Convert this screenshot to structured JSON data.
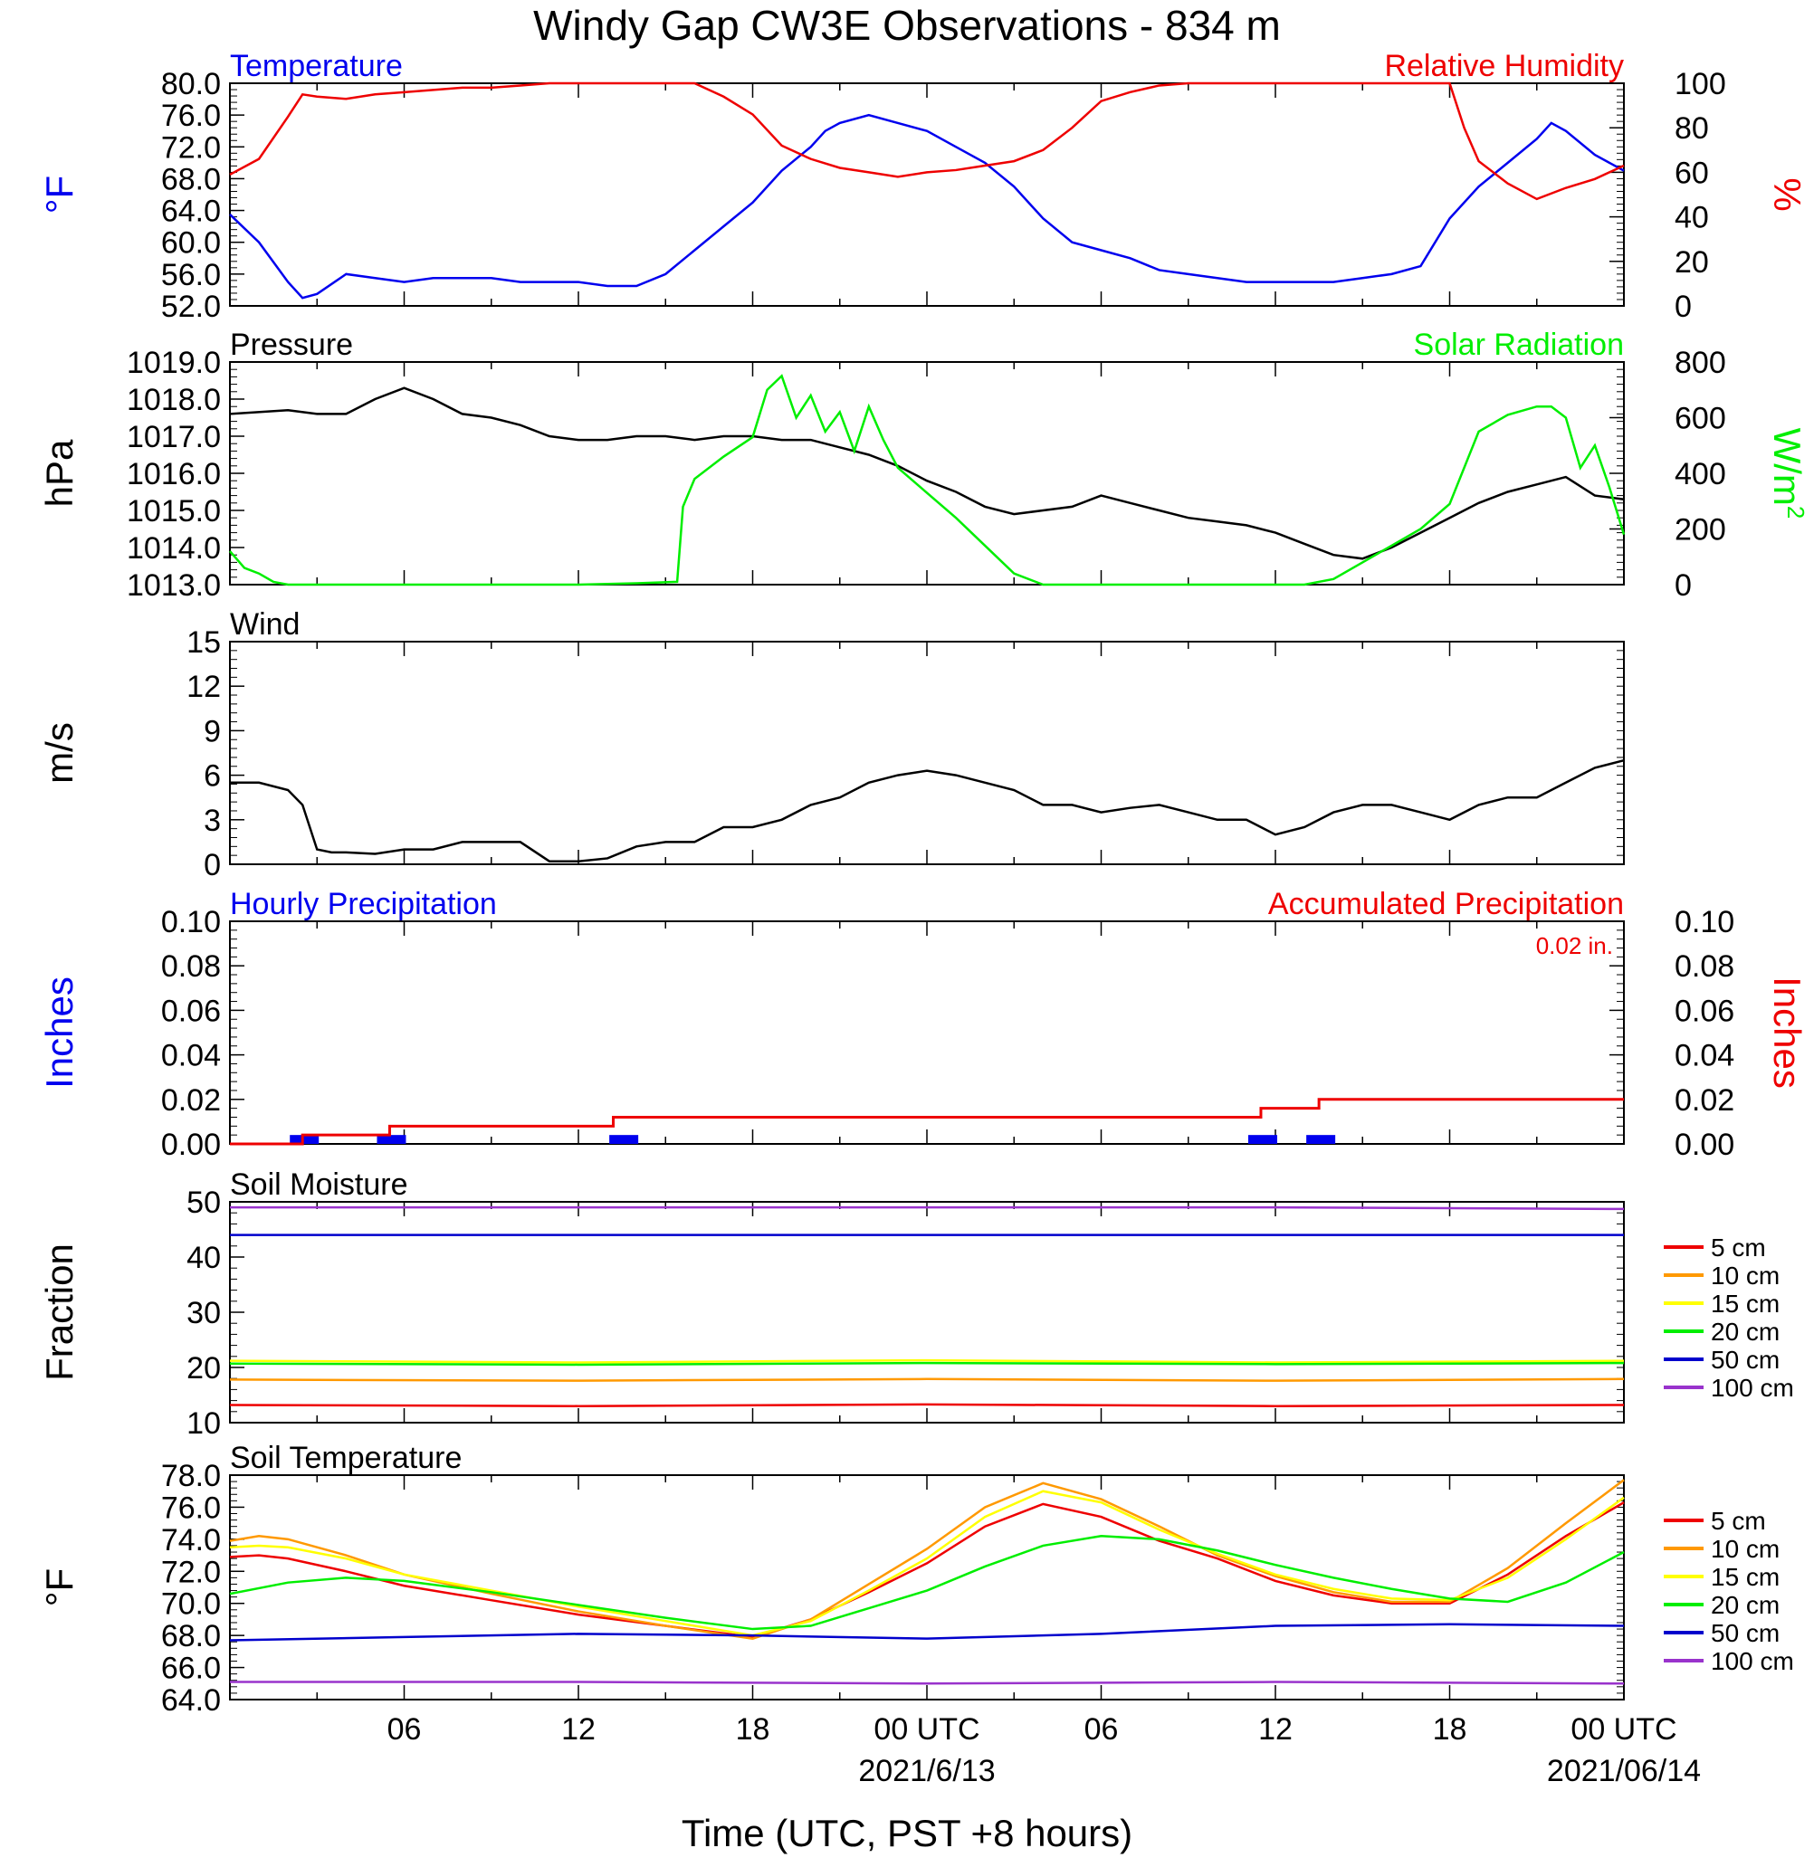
{
  "page": {
    "title": "Windy Gap CW3E Observations - 834 m"
  },
  "colors": {
    "blue": "#0000ee",
    "red": "#ee0000",
    "green": "#00ee00",
    "black": "#000000",
    "orange": "#ff9900",
    "yellow": "#ffff00",
    "navy": "#0000cc",
    "purple": "#9933cc"
  },
  "x_axis": {
    "xlabel": "Time (UTC, PST +8 hours)",
    "ticks": [
      {
        "h": 6,
        "label": "06"
      },
      {
        "h": 12,
        "label": "12"
      },
      {
        "h": 18,
        "label": "18"
      },
      {
        "h": 24,
        "label": "00 UTC",
        "sub": "2021/6/13"
      },
      {
        "h": 30,
        "label": "06"
      },
      {
        "h": 36,
        "label": "12"
      },
      {
        "h": 42,
        "label": "18"
      },
      {
        "h": 48,
        "label": "00 UTC",
        "sub": "2021/06/14"
      }
    ]
  },
  "chart_data": [
    {
      "type": "line",
      "title_left": "Temperature",
      "title_right": "Relative Humidity",
      "ylabel": "°F",
      "ylabel_right": "%",
      "ylim": [
        52,
        80
      ],
      "ylim_right": [
        0,
        100
      ],
      "yticks": [
        "52.0",
        "56.0",
        "60.0",
        "64.0",
        "68.0",
        "72.0",
        "76.0",
        "80.0"
      ],
      "yticks_right": [
        "0",
        "20",
        "40",
        "60",
        "80",
        "100"
      ],
      "x_unit": "hours since 2021/06/12 00 UTC",
      "series": [
        {
          "name": "Temperature",
          "axis": "left",
          "color": "blue",
          "x": [
            0,
            1,
            2,
            2.5,
            3,
            4,
            5,
            6,
            7,
            8,
            9,
            10,
            11,
            12,
            13,
            14,
            15,
            16,
            17,
            18,
            19,
            20,
            20.5,
            21,
            22,
            23,
            24,
            25,
            26,
            27,
            28,
            29,
            30,
            31,
            32,
            33,
            34,
            35,
            36,
            37,
            38,
            39,
            40,
            41,
            42,
            43,
            44,
            45,
            45.5,
            46,
            47,
            48
          ],
          "y": [
            63.5,
            60,
            55,
            53,
            53.5,
            56,
            55.5,
            55,
            55.5,
            55.5,
            55.5,
            55,
            55,
            55,
            54.5,
            54.5,
            56,
            59,
            62,
            65,
            69,
            72,
            74,
            75,
            76,
            75,
            74,
            72,
            70,
            67,
            63,
            60,
            59,
            58,
            56.5,
            56,
            55.5,
            55,
            55,
            55,
            55,
            55.5,
            56,
            57,
            63,
            67,
            70,
            73,
            75,
            74,
            71,
            69
          ]
        },
        {
          "name": "Relative Humidity",
          "axis": "right",
          "color": "red",
          "x": [
            0,
            1,
            2,
            2.5,
            3,
            4,
            5,
            6,
            7,
            8,
            9,
            10,
            11,
            12,
            13,
            14,
            15,
            16,
            16.5,
            17,
            18,
            19,
            20,
            21,
            22,
            23,
            24,
            25,
            26,
            27,
            28,
            29,
            30,
            31,
            32,
            33,
            34,
            35,
            36,
            37,
            38,
            39,
            40,
            41,
            42,
            42.5,
            43,
            44,
            45,
            46,
            47,
            48
          ],
          "y": [
            59,
            66,
            85,
            95,
            94,
            93,
            95,
            96,
            97,
            98,
            98,
            99,
            100,
            100,
            100,
            100,
            100,
            100,
            97,
            94,
            86,
            72,
            66,
            62,
            60,
            58,
            60,
            61,
            63,
            65,
            70,
            80,
            92,
            96,
            99,
            100,
            100,
            100,
            100,
            100,
            100,
            100,
            100,
            100,
            100,
            80,
            65,
            55,
            48,
            53,
            57,
            63
          ]
        }
      ]
    },
    {
      "type": "line",
      "title_left": "Pressure",
      "title_right": "Solar Radiation",
      "ylabel": "hPa",
      "ylabel_right": "W/m",
      "ylabel_right_sup": "2",
      "ylim": [
        1013,
        1019
      ],
      "ylim_right": [
        0,
        800
      ],
      "yticks": [
        "1013.0",
        "1014.0",
        "1015.0",
        "1016.0",
        "1017.0",
        "1018.0",
        "1019.0"
      ],
      "yticks_right": [
        "0",
        "200",
        "400",
        "600",
        "800"
      ],
      "series": [
        {
          "name": "Pressure",
          "axis": "left",
          "color": "black",
          "x": [
            0,
            2,
            3,
            4,
            5,
            6,
            7,
            8,
            9,
            10,
            11,
            12,
            13,
            14,
            15,
            16,
            17,
            18,
            19,
            20,
            21,
            22,
            23,
            24,
            25,
            26,
            27,
            28,
            29,
            30,
            31,
            32,
            33,
            34,
            35,
            36,
            37,
            38,
            39,
            40,
            41,
            42,
            43,
            44,
            45,
            46,
            47,
            48
          ],
          "y": [
            1017.6,
            1017.7,
            1017.6,
            1017.6,
            1018.0,
            1018.3,
            1018.0,
            1017.6,
            1017.5,
            1017.3,
            1017.0,
            1016.9,
            1016.9,
            1017.0,
            1017.0,
            1016.9,
            1017.0,
            1017.0,
            1016.9,
            1016.9,
            1016.7,
            1016.5,
            1016.2,
            1015.8,
            1015.5,
            1015.1,
            1014.9,
            1015.0,
            1015.1,
            1015.4,
            1015.2,
            1015.0,
            1014.8,
            1014.7,
            1014.6,
            1014.4,
            1014.1,
            1013.8,
            1013.7,
            1014.0,
            1014.4,
            1014.8,
            1015.2,
            1015.5,
            1015.7,
            1015.9,
            1015.4,
            1015.3
          ]
        },
        {
          "name": "Solar Radiation",
          "axis": "right",
          "color": "green",
          "x": [
            0,
            0.5,
            1,
            1.5,
            2,
            3,
            6,
            9,
            12,
            14,
            15.4,
            15.6,
            16,
            17,
            18,
            18.5,
            19,
            19.5,
            20,
            20.5,
            21,
            21.5,
            22,
            22.5,
            23,
            24,
            25,
            26,
            27,
            28,
            29,
            30,
            31,
            32,
            33,
            34,
            35,
            36,
            37,
            38,
            39,
            40,
            41,
            42,
            43,
            44,
            45,
            45.5,
            46,
            46.5,
            47,
            47.5,
            48
          ],
          "y": [
            120,
            60,
            40,
            10,
            0,
            0,
            0,
            0,
            0,
            5,
            10,
            280,
            380,
            460,
            530,
            700,
            750,
            600,
            680,
            550,
            620,
            480,
            640,
            520,
            420,
            330,
            240,
            140,
            40,
            0,
            0,
            0,
            0,
            0,
            0,
            0,
            0,
            0,
            0,
            20,
            80,
            140,
            200,
            290,
            550,
            610,
            640,
            640,
            600,
            420,
            500,
            350,
            180
          ]
        }
      ]
    },
    {
      "type": "line",
      "title_left": "Wind",
      "ylabel": "m/s",
      "ylim": [
        0,
        15
      ],
      "yticks": [
        "0",
        "3",
        "6",
        "9",
        "12",
        "15"
      ],
      "series": [
        {
          "name": "Wind",
          "color": "black",
          "x": [
            0,
            1,
            2,
            2.5,
            3,
            3.5,
            4,
            5,
            6,
            7,
            8,
            9,
            10,
            11,
            12,
            13,
            14,
            15,
            16,
            17,
            18,
            19,
            20,
            21,
            22,
            23,
            24,
            25,
            26,
            27,
            28,
            29,
            30,
            31,
            32,
            33,
            34,
            35,
            36,
            37,
            38,
            39,
            40,
            41,
            42,
            43,
            44,
            45,
            46,
            47,
            48
          ],
          "y": [
            5.5,
            5.5,
            5,
            4,
            1,
            0.8,
            0.8,
            0.7,
            1,
            1,
            1.5,
            1.5,
            1.5,
            0.2,
            0.2,
            0.4,
            1.2,
            1.5,
            1.5,
            2.5,
            2.5,
            3,
            4,
            4.5,
            5.5,
            6,
            6.3,
            6,
            5.5,
            5,
            4,
            4,
            3.5,
            3.8,
            4,
            3.5,
            3,
            3,
            2,
            2.5,
            3.5,
            4,
            4,
            3.5,
            3,
            4,
            4.5,
            4.5,
            5.5,
            6.5,
            7
          ]
        }
      ]
    },
    {
      "type": "bar",
      "title_left": "Hourly Precipitation",
      "title_right": "Accumulated Precipitation",
      "annotation": "0.02 in.",
      "ylabel": "Inches",
      "ylabel_right": "Inches",
      "ylim": [
        0,
        0.1
      ],
      "ylim_right": [
        0,
        0.1
      ],
      "yticks": [
        "0.00",
        "0.02",
        "0.04",
        "0.06",
        "0.08",
        "0.10"
      ],
      "yticks_right": [
        "0.00",
        "0.02",
        "0.04",
        "0.06",
        "0.08",
        "0.10"
      ],
      "series": [
        {
          "name": "Hourly Precipitation",
          "color": "blue",
          "x": [
            2.5,
            5.5,
            13.5,
            35.5,
            37.5
          ],
          "values": [
            0.004,
            0.004,
            0.004,
            0.004,
            0.004
          ]
        },
        {
          "name": "Accumulated Precipitation",
          "color": "red",
          "x": [
            0,
            2.5,
            5.5,
            13.2,
            35.5,
            37.5,
            48
          ],
          "values": [
            0,
            0.004,
            0.008,
            0.012,
            0.016,
            0.02,
            0.02
          ]
        }
      ]
    },
    {
      "type": "line",
      "title_left": "Soil Moisture",
      "ylabel": "Fraction",
      "ylim": [
        10,
        50
      ],
      "yticks": [
        "10",
        "20",
        "30",
        "40",
        "50"
      ],
      "series": [
        {
          "name": "5 cm",
          "color": "red",
          "x": [
            0,
            12,
            24,
            36,
            48
          ],
          "y": [
            13.2,
            13,
            13.3,
            13,
            13.2
          ]
        },
        {
          "name": "10 cm",
          "color": "orange",
          "x": [
            0,
            12,
            24,
            36,
            48
          ],
          "y": [
            17.8,
            17.6,
            17.9,
            17.6,
            17.9
          ]
        },
        {
          "name": "15 cm",
          "color": "yellow",
          "x": [
            0,
            12,
            24,
            36,
            48
          ],
          "y": [
            21.2,
            20.9,
            21.3,
            20.9,
            21.2
          ]
        },
        {
          "name": "20 cm",
          "color": "green",
          "x": [
            0,
            12,
            24,
            36,
            48
          ],
          "y": [
            20.7,
            20.5,
            20.8,
            20.6,
            20.8
          ]
        },
        {
          "name": "50 cm",
          "color": "navy",
          "x": [
            0,
            12,
            24,
            36,
            48
          ],
          "y": [
            44,
            44,
            44,
            44,
            44
          ]
        },
        {
          "name": "100 cm",
          "color": "purple",
          "x": [
            0,
            12,
            24,
            36,
            48
          ],
          "y": [
            49,
            49,
            49,
            49,
            48.7
          ]
        }
      ]
    },
    {
      "type": "line",
      "title_left": "Soil Temperature",
      "ylabel": "°F",
      "ylim": [
        64,
        78
      ],
      "yticks": [
        "64.0",
        "66.0",
        "68.0",
        "70.0",
        "72.0",
        "74.0",
        "76.0",
        "78.0"
      ],
      "series": [
        {
          "name": "5 cm",
          "color": "red",
          "x": [
            0,
            1,
            2,
            4,
            6,
            9,
            12,
            15,
            18,
            20,
            22,
            24,
            26,
            28,
            30,
            32,
            34,
            36,
            38,
            40,
            42,
            44,
            46,
            48
          ],
          "y": [
            72.9,
            73,
            72.8,
            72,
            71.1,
            70.2,
            69.3,
            68.6,
            67.9,
            69,
            70.7,
            72.5,
            74.8,
            76.2,
            75.4,
            73.9,
            72.8,
            71.4,
            70.5,
            70,
            70,
            71.8,
            74.2,
            76.3
          ]
        },
        {
          "name": "10 cm",
          "color": "orange",
          "x": [
            0,
            1,
            2,
            4,
            6,
            9,
            12,
            15,
            18,
            20,
            22,
            24,
            26,
            28,
            30,
            32,
            34,
            36,
            38,
            40,
            42,
            44,
            46,
            48
          ],
          "y": [
            73.9,
            74.2,
            74,
            73,
            71.8,
            70.6,
            69.5,
            68.6,
            67.8,
            69,
            71.2,
            73.4,
            76,
            77.5,
            76.5,
            74.8,
            73,
            71.7,
            70.7,
            70.1,
            70.1,
            72.2,
            75,
            77.7
          ]
        },
        {
          "name": "15 cm",
          "color": "yellow",
          "x": [
            0,
            1,
            2,
            4,
            6,
            9,
            12,
            15,
            18,
            20,
            22,
            24,
            26,
            28,
            30,
            32,
            34,
            36,
            38,
            40,
            42,
            44,
            46,
            48
          ],
          "y": [
            73.5,
            73.6,
            73.5,
            72.8,
            71.8,
            70.8,
            69.8,
            68.9,
            68,
            68.9,
            70.8,
            72.8,
            75.4,
            77,
            76.3,
            74.6,
            73.1,
            71.8,
            70.9,
            70.3,
            70.2,
            71.6,
            74,
            76.6
          ]
        },
        {
          "name": "20 cm",
          "color": "green",
          "x": [
            0,
            2,
            4,
            6,
            9,
            12,
            15,
            18,
            20,
            22,
            24,
            26,
            28,
            30,
            32,
            34,
            36,
            38,
            40,
            42,
            44,
            46,
            48
          ],
          "y": [
            70.6,
            71.3,
            71.6,
            71.4,
            70.7,
            69.9,
            69.1,
            68.4,
            68.6,
            69.7,
            70.8,
            72.3,
            73.6,
            74.2,
            74,
            73.3,
            72.4,
            71.6,
            70.9,
            70.3,
            70.1,
            71.3,
            73.2
          ]
        },
        {
          "name": "50 cm",
          "color": "navy",
          "x": [
            0,
            6,
            12,
            18,
            24,
            30,
            36,
            42,
            48
          ],
          "y": [
            67.7,
            67.9,
            68.1,
            68,
            67.8,
            68.1,
            68.6,
            68.7,
            68.6
          ]
        },
        {
          "name": "100 cm",
          "color": "purple",
          "x": [
            0,
            12,
            24,
            36,
            48
          ],
          "y": [
            65.1,
            65.1,
            65.0,
            65.1,
            65.0
          ]
        }
      ]
    }
  ]
}
